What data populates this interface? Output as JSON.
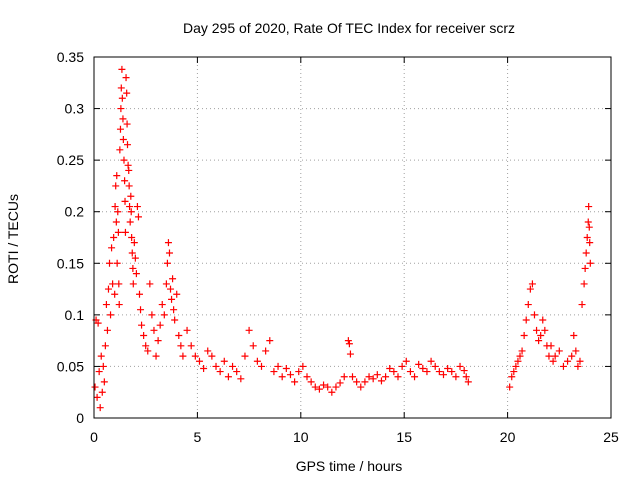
{
  "chart_data": {
    "type": "scatter",
    "title": "Day 295 of 2020, Rate Of TEC Index for receiver scrz",
    "xlabel": "GPS time / hours",
    "ylabel": "ROTI / TECUs",
    "xlim": [
      0,
      25
    ],
    "ylim": [
      0,
      0.35
    ],
    "xticks": [
      0,
      5,
      10,
      15,
      20,
      25
    ],
    "xtick_labels": [
      "0",
      "5",
      "10",
      "15",
      "20",
      "25"
    ],
    "yticks": [
      0,
      0.05,
      0.1,
      0.15,
      0.2,
      0.25,
      0.3,
      0.35
    ],
    "ytick_labels": [
      "0",
      "0.05",
      "0.1",
      "0.15",
      "0.2",
      "0.25",
      "0.3",
      "0.35"
    ],
    "grid": true,
    "marker": "+",
    "color": "#ff0000",
    "series": [
      {
        "name": "ROTI",
        "points": [
          [
            0.05,
            0.03
          ],
          [
            0.1,
            0.095
          ],
          [
            0.15,
            0.02
          ],
          [
            0.2,
            0.092
          ],
          [
            0.25,
            0.045
          ],
          [
            0.3,
            0.01
          ],
          [
            0.35,
            0.06
          ],
          [
            0.4,
            0.025
          ],
          [
            0.45,
            0.05
          ],
          [
            0.5,
            0.035
          ],
          [
            0.55,
            0.07
          ],
          [
            0.6,
            0.11
          ],
          [
            0.65,
            0.085
          ],
          [
            0.7,
            0.125
          ],
          [
            0.75,
            0.15
          ],
          [
            0.8,
            0.1
          ],
          [
            0.85,
            0.165
          ],
          [
            0.9,
            0.13
          ],
          [
            0.95,
            0.175
          ],
          [
            1.0,
            0.12
          ],
          [
            1.02,
            0.205
          ],
          [
            1.05,
            0.225
          ],
          [
            1.08,
            0.19
          ],
          [
            1.1,
            0.235
          ],
          [
            1.12,
            0.15
          ],
          [
            1.15,
            0.2
          ],
          [
            1.18,
            0.18
          ],
          [
            1.2,
            0.13
          ],
          [
            1.22,
            0.11
          ],
          [
            1.25,
            0.26
          ],
          [
            1.28,
            0.28
          ],
          [
            1.3,
            0.3
          ],
          [
            1.32,
            0.32
          ],
          [
            1.35,
            0.338
          ],
          [
            1.37,
            0.31
          ],
          [
            1.4,
            0.29
          ],
          [
            1.42,
            0.27
          ],
          [
            1.45,
            0.25
          ],
          [
            1.48,
            0.23
          ],
          [
            1.5,
            0.21
          ],
          [
            1.52,
            0.18
          ],
          [
            1.55,
            0.33
          ],
          [
            1.58,
            0.315
          ],
          [
            1.6,
            0.285
          ],
          [
            1.62,
            0.265
          ],
          [
            1.65,
            0.245
          ],
          [
            1.68,
            0.24
          ],
          [
            1.7,
            0.225
          ],
          [
            1.72,
            0.205
          ],
          [
            1.75,
            0.19
          ],
          [
            1.78,
            0.215
          ],
          [
            1.8,
            0.2
          ],
          [
            1.82,
            0.175
          ],
          [
            1.85,
            0.16
          ],
          [
            1.88,
            0.145
          ],
          [
            1.9,
            0.13
          ],
          [
            1.95,
            0.17
          ],
          [
            2.0,
            0.155
          ],
          [
            2.05,
            0.14
          ],
          [
            2.1,
            0.205
          ],
          [
            2.15,
            0.195
          ],
          [
            2.2,
            0.12
          ],
          [
            2.25,
            0.105
          ],
          [
            2.3,
            0.09
          ],
          [
            2.4,
            0.08
          ],
          [
            2.5,
            0.07
          ],
          [
            2.6,
            0.065
          ],
          [
            2.7,
            0.13
          ],
          [
            2.8,
            0.1
          ],
          [
            2.9,
            0.085
          ],
          [
            3.0,
            0.06
          ],
          [
            3.1,
            0.075
          ],
          [
            3.2,
            0.09
          ],
          [
            3.3,
            0.11
          ],
          [
            3.4,
            0.1
          ],
          [
            3.5,
            0.13
          ],
          [
            3.55,
            0.15
          ],
          [
            3.6,
            0.17
          ],
          [
            3.65,
            0.16
          ],
          [
            3.7,
            0.125
          ],
          [
            3.75,
            0.115
          ],
          [
            3.8,
            0.135
          ],
          [
            3.85,
            0.105
          ],
          [
            3.9,
            0.095
          ],
          [
            4.0,
            0.12
          ],
          [
            4.1,
            0.08
          ],
          [
            4.2,
            0.07
          ],
          [
            4.3,
            0.06
          ],
          [
            4.5,
            0.085
          ],
          [
            4.7,
            0.07
          ],
          [
            4.9,
            0.06
          ],
          [
            5.1,
            0.055
          ],
          [
            5.3,
            0.048
          ],
          [
            5.5,
            0.065
          ],
          [
            5.7,
            0.06
          ],
          [
            5.9,
            0.05
          ],
          [
            6.1,
            0.045
          ],
          [
            6.3,
            0.055
          ],
          [
            6.5,
            0.04
          ],
          [
            6.7,
            0.05
          ],
          [
            6.9,
            0.045
          ],
          [
            7.1,
            0.038
          ],
          [
            7.3,
            0.06
          ],
          [
            7.5,
            0.085
          ],
          [
            7.7,
            0.07
          ],
          [
            7.9,
            0.055
          ],
          [
            8.1,
            0.05
          ],
          [
            8.3,
            0.065
          ],
          [
            8.5,
            0.075
          ],
          [
            8.7,
            0.045
          ],
          [
            8.9,
            0.05
          ],
          [
            9.1,
            0.04
          ],
          [
            9.3,
            0.048
          ],
          [
            9.5,
            0.042
          ],
          [
            9.7,
            0.035
          ],
          [
            9.9,
            0.045
          ],
          [
            10.1,
            0.05
          ],
          [
            10.3,
            0.04
          ],
          [
            10.5,
            0.035
          ],
          [
            10.7,
            0.03
          ],
          [
            10.9,
            0.028
          ],
          [
            11.1,
            0.032
          ],
          [
            11.3,
            0.03
          ],
          [
            11.5,
            0.025
          ],
          [
            11.7,
            0.03
          ],
          [
            11.9,
            0.034
          ],
          [
            12.1,
            0.04
          ],
          [
            12.3,
            0.075
          ],
          [
            12.35,
            0.072
          ],
          [
            12.4,
            0.062
          ],
          [
            12.5,
            0.04
          ],
          [
            12.7,
            0.035
          ],
          [
            12.9,
            0.03
          ],
          [
            13.1,
            0.035
          ],
          [
            13.3,
            0.04
          ],
          [
            13.5,
            0.038
          ],
          [
            13.7,
            0.042
          ],
          [
            13.9,
            0.036
          ],
          [
            14.1,
            0.04
          ],
          [
            14.3,
            0.048
          ],
          [
            14.5,
            0.045
          ],
          [
            14.7,
            0.04
          ],
          [
            14.9,
            0.05
          ],
          [
            15.1,
            0.055
          ],
          [
            15.3,
            0.045
          ],
          [
            15.5,
            0.04
          ],
          [
            15.7,
            0.052
          ],
          [
            15.9,
            0.048
          ],
          [
            16.1,
            0.045
          ],
          [
            16.3,
            0.055
          ],
          [
            16.5,
            0.05
          ],
          [
            16.7,
            0.045
          ],
          [
            16.9,
            0.042
          ],
          [
            17.1,
            0.048
          ],
          [
            17.3,
            0.045
          ],
          [
            17.5,
            0.04
          ],
          [
            17.7,
            0.05
          ],
          [
            17.9,
            0.046
          ],
          [
            18.0,
            0.04
          ],
          [
            18.1,
            0.035
          ],
          [
            20.1,
            0.03
          ],
          [
            20.2,
            0.04
          ],
          [
            20.3,
            0.045
          ],
          [
            20.4,
            0.05
          ],
          [
            20.5,
            0.055
          ],
          [
            20.6,
            0.06
          ],
          [
            20.7,
            0.065
          ],
          [
            20.8,
            0.08
          ],
          [
            20.9,
            0.095
          ],
          [
            21.0,
            0.11
          ],
          [
            21.1,
            0.125
          ],
          [
            21.2,
            0.13
          ],
          [
            21.3,
            0.1
          ],
          [
            21.4,
            0.085
          ],
          [
            21.5,
            0.075
          ],
          [
            21.6,
            0.08
          ],
          [
            21.7,
            0.095
          ],
          [
            21.8,
            0.085
          ],
          [
            21.9,
            0.07
          ],
          [
            22.0,
            0.06
          ],
          [
            22.1,
            0.07
          ],
          [
            22.2,
            0.055
          ],
          [
            22.3,
            0.06
          ],
          [
            22.5,
            0.065
          ],
          [
            22.7,
            0.05
          ],
          [
            22.9,
            0.055
          ],
          [
            23.1,
            0.06
          ],
          [
            23.2,
            0.08
          ],
          [
            23.3,
            0.065
          ],
          [
            23.4,
            0.05
          ],
          [
            23.5,
            0.055
          ],
          [
            23.6,
            0.11
          ],
          [
            23.7,
            0.13
          ],
          [
            23.75,
            0.145
          ],
          [
            23.8,
            0.16
          ],
          [
            23.85,
            0.175
          ],
          [
            23.9,
            0.19
          ],
          [
            23.92,
            0.205
          ],
          [
            23.95,
            0.185
          ],
          [
            23.97,
            0.17
          ],
          [
            24.0,
            0.15
          ]
        ]
      }
    ]
  }
}
